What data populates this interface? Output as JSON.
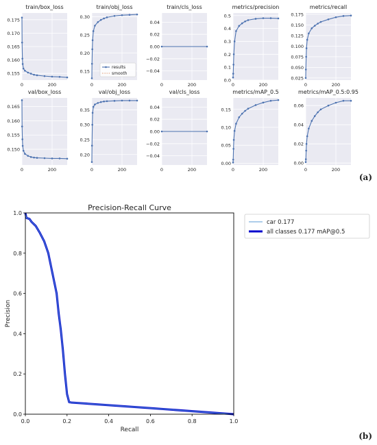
{
  "panel_labels": [
    "(a)",
    "(b)"
  ],
  "chart_data": [
    {
      "type": "line",
      "title": "train/box_loss",
      "xlim": [
        0,
        300
      ],
      "ylim": [
        0.1525,
        0.1775
      ],
      "xticks": [
        0,
        200
      ],
      "yticks": [
        0.155,
        0.16,
        0.165,
        0.17,
        0.175
      ],
      "ytick_labels": [
        "0.155",
        "0.160",
        "0.165",
        "0.170",
        "0.175"
      ],
      "legend": null,
      "series": [
        {
          "x": [
            0,
            1,
            3,
            5,
            10,
            20,
            40,
            60,
            80,
            100,
            150,
            200,
            250,
            300
          ],
          "y": [
            0.1758,
            0.1665,
            0.1605,
            0.1585,
            0.1568,
            0.156,
            0.1553,
            0.1549,
            0.1545,
            0.1543,
            0.154,
            0.1538,
            0.1537,
            0.1535
          ]
        }
      ]
    },
    {
      "type": "line",
      "title": "train/obj_loss",
      "xlim": [
        0,
        300
      ],
      "ylim": [
        0.125,
        0.31
      ],
      "xticks": [
        0,
        200
      ],
      "yticks": [
        0.15,
        0.2,
        0.25,
        0.3
      ],
      "ytick_labels": [
        "0.15",
        "0.20",
        "0.25",
        "0.30"
      ],
      "legend": {
        "position": "lower-right",
        "entries": [
          "results",
          "smooth"
        ]
      },
      "series": [
        {
          "x": [
            0,
            1,
            3,
            5,
            10,
            20,
            40,
            60,
            80,
            100,
            150,
            200,
            250,
            300
          ],
          "y": [
            0.13,
            0.17,
            0.21,
            0.235,
            0.26,
            0.275,
            0.285,
            0.291,
            0.295,
            0.298,
            0.302,
            0.304,
            0.305,
            0.306
          ]
        }
      ]
    },
    {
      "type": "line",
      "title": "train/cls_loss",
      "xlim": [
        0,
        300
      ],
      "ylim": [
        -0.055,
        0.055
      ],
      "xticks": [
        0,
        200
      ],
      "yticks": [
        -0.04,
        -0.02,
        0.0,
        0.02,
        0.04
      ],
      "ytick_labels": [
        "−0.04",
        "−0.02",
        "0.00",
        "0.02",
        "0.04"
      ],
      "legend": null,
      "series": [
        {
          "x": [
            0,
            300
          ],
          "y": [
            0,
            0
          ]
        }
      ]
    },
    {
      "type": "line",
      "title": "metrics/precision",
      "xlim": [
        0,
        300
      ],
      "ylim": [
        0.0,
        0.52
      ],
      "xticks": [
        0,
        200
      ],
      "yticks": [
        0.0,
        0.1,
        0.2,
        0.3,
        0.4,
        0.5
      ],
      "ytick_labels": [
        "0.0",
        "0.1",
        "0.2",
        "0.3",
        "0.4",
        "0.5"
      ],
      "legend": null,
      "series": [
        {
          "x": [
            0,
            1,
            3,
            5,
            10,
            20,
            40,
            60,
            80,
            100,
            150,
            200,
            250,
            300
          ],
          "y": [
            0.02,
            0.05,
            0.12,
            0.2,
            0.3,
            0.38,
            0.42,
            0.44,
            0.455,
            0.465,
            0.475,
            0.48,
            0.48,
            0.478
          ]
        }
      ]
    },
    {
      "type": "line",
      "title": "metrics/recall",
      "xlim": [
        0,
        300
      ],
      "ylim": [
        0.02,
        0.178
      ],
      "xticks": [
        0,
        200
      ],
      "yticks": [
        0.025,
        0.05,
        0.075,
        0.1,
        0.125,
        0.15,
        0.175
      ],
      "ytick_labels": [
        "0.025",
        "0.050",
        "0.075",
        "0.100",
        "0.125",
        "0.150",
        "0.175"
      ],
      "legend": null,
      "series": [
        {
          "x": [
            0,
            1,
            3,
            5,
            10,
            20,
            40,
            60,
            80,
            100,
            150,
            200,
            250,
            300
          ],
          "y": [
            0.025,
            0.045,
            0.075,
            0.095,
            0.115,
            0.13,
            0.142,
            0.148,
            0.153,
            0.157,
            0.163,
            0.168,
            0.171,
            0.172
          ]
        }
      ]
    },
    {
      "type": "line",
      "title": "val/box_loss",
      "xlim": [
        0,
        300
      ],
      "ylim": [
        0.1445,
        0.168
      ],
      "xticks": [
        0,
        200
      ],
      "yticks": [
        0.15,
        0.155,
        0.16,
        0.165
      ],
      "ytick_labels": [
        "0.150",
        "0.155",
        "0.160",
        "0.165"
      ],
      "legend": null,
      "series": [
        {
          "x": [
            0,
            1,
            3,
            5,
            10,
            20,
            40,
            60,
            80,
            100,
            150,
            200,
            250,
            300
          ],
          "y": [
            0.1672,
            0.158,
            0.1535,
            0.1512,
            0.1495,
            0.1484,
            0.1477,
            0.1473,
            0.1471,
            0.147,
            0.1469,
            0.1468,
            0.1468,
            0.1467
          ]
        }
      ]
    },
    {
      "type": "line",
      "title": "val/obj_loss",
      "xlim": [
        0,
        300
      ],
      "ylim": [
        0.165,
        0.39
      ],
      "xticks": [
        0,
        200
      ],
      "yticks": [
        0.2,
        0.25,
        0.3,
        0.35
      ],
      "ytick_labels": [
        "0.20",
        "0.25",
        "0.30",
        "0.35"
      ],
      "legend": null,
      "series": [
        {
          "x": [
            0,
            1,
            3,
            5,
            10,
            20,
            40,
            60,
            80,
            100,
            150,
            200,
            250,
            300
          ],
          "y": [
            0.175,
            0.23,
            0.3,
            0.34,
            0.36,
            0.368,
            0.373,
            0.376,
            0.378,
            0.379,
            0.38,
            0.381,
            0.381,
            0.381
          ]
        }
      ]
    },
    {
      "type": "line",
      "title": "val/cls_loss",
      "xlim": [
        0,
        300
      ],
      "ylim": [
        -0.055,
        0.055
      ],
      "xticks": [
        0,
        200
      ],
      "yticks": [
        -0.04,
        -0.02,
        0.0,
        0.02,
        0.04
      ],
      "ytick_labels": [
        "−0.04",
        "−0.02",
        "0.00",
        "0.02",
        "0.04"
      ],
      "legend": null,
      "series": [
        {
          "x": [
            0,
            300
          ],
          "y": [
            0,
            0
          ]
        }
      ]
    },
    {
      "type": "line",
      "title": "metrics/mAP_0.5",
      "xlim": [
        0,
        300
      ],
      "ylim": [
        -0.005,
        0.182
      ],
      "xticks": [
        0,
        200
      ],
      "yticks": [
        0.0,
        0.05,
        0.1,
        0.15
      ],
      "ytick_labels": [
        "0.00",
        "0.05",
        "0.10",
        "0.15"
      ],
      "legend": null,
      "series": [
        {
          "x": [
            0,
            1,
            3,
            5,
            10,
            20,
            40,
            60,
            80,
            100,
            150,
            200,
            250,
            300
          ],
          "y": [
            0.002,
            0.01,
            0.04,
            0.065,
            0.09,
            0.11,
            0.128,
            0.138,
            0.146,
            0.152,
            0.162,
            0.169,
            0.174,
            0.176
          ]
        }
      ]
    },
    {
      "type": "line",
      "title": "metrics/mAP_0.5:0.95",
      "xlim": [
        0,
        300
      ],
      "ylim": [
        -0.002,
        0.068
      ],
      "xticks": [
        0,
        200
      ],
      "yticks": [
        0.0,
        0.02,
        0.04,
        0.06
      ],
      "ytick_labels": [
        "0.00",
        "0.02",
        "0.04",
        "0.06"
      ],
      "legend": null,
      "series": [
        {
          "x": [
            0,
            1,
            3,
            5,
            10,
            20,
            40,
            60,
            80,
            100,
            150,
            200,
            250,
            300
          ],
          "y": [
            0.001,
            0.004,
            0.013,
            0.02,
            0.028,
            0.036,
            0.044,
            0.049,
            0.053,
            0.056,
            0.06,
            0.063,
            0.065,
            0.065
          ]
        }
      ]
    },
    {
      "type": "line",
      "title": "Precision-Recall Curve",
      "xlabel": "Recall",
      "ylabel": "Precision",
      "xlim": [
        0.0,
        1.0
      ],
      "ylim": [
        0.0,
        1.0
      ],
      "xticks": [
        0.0,
        0.2,
        0.4,
        0.6,
        0.8,
        1.0
      ],
      "xtick_labels": [
        "0.0",
        "0.2",
        "0.4",
        "0.6",
        "0.8",
        "1.0"
      ],
      "yticks": [
        0.0,
        0.2,
        0.4,
        0.6,
        0.8,
        1.0
      ],
      "ytick_labels": [
        "0.0",
        "0.2",
        "0.4",
        "0.6",
        "0.8",
        "1.0"
      ],
      "grid": false,
      "legend": {
        "position": "outside-right",
        "entries": [
          "car 0.177",
          "all classes 0.177 mAP@0.5"
        ]
      },
      "series": [
        {
          "name": "car 0.177",
          "color": "#5b9bd5",
          "x": [
            0.0,
            0.005,
            0.02,
            0.03,
            0.05,
            0.07,
            0.09,
            0.11,
            0.13,
            0.15,
            0.16,
            0.17,
            0.18,
            0.19,
            0.2,
            0.21,
            0.22,
            0.6,
            1.0
          ],
          "y": [
            1.0,
            0.975,
            0.97,
            0.955,
            0.935,
            0.9,
            0.86,
            0.8,
            0.7,
            0.6,
            0.5,
            0.42,
            0.32,
            0.2,
            0.1,
            0.06,
            0.058,
            0.03,
            0.0
          ]
        },
        {
          "name": "all classes 0.177 mAP@0.5",
          "color": "#0000cc",
          "x": [
            0.0,
            0.005,
            0.02,
            0.03,
            0.05,
            0.07,
            0.09,
            0.11,
            0.13,
            0.15,
            0.16,
            0.17,
            0.18,
            0.19,
            0.2,
            0.21,
            0.22,
            0.6,
            1.0
          ],
          "y": [
            1.0,
            0.975,
            0.97,
            0.955,
            0.935,
            0.9,
            0.86,
            0.8,
            0.7,
            0.6,
            0.5,
            0.42,
            0.32,
            0.2,
            0.1,
            0.06,
            0.058,
            0.03,
            0.0
          ]
        }
      ]
    }
  ],
  "colors": {
    "panel_bg": "#eaeaf2",
    "series": "#4c72b0",
    "grid": "#ffffff",
    "pr_thin": "#5b9bd5",
    "pr_thick": "#0000cc",
    "smooth": "#dd8452"
  }
}
